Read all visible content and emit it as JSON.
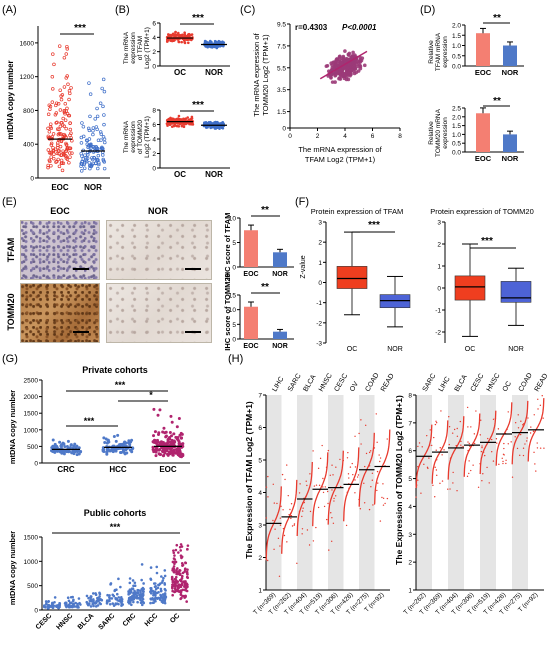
{
  "panels": {
    "A": {
      "letter": "(A)",
      "ylabel": "mtDNA copy number",
      "ticks": [
        "0",
        "400",
        "800",
        "1200",
        "1600"
      ],
      "groups": [
        "EOC",
        "NOR"
      ],
      "sig": "***"
    },
    "B": {
      "letter": "(B)",
      "top": {
        "ylabel_lines": [
          "The mRNA",
          "expression",
          "of TFAM",
          "Log2 (TPM+1)"
        ],
        "ticks": [
          "0",
          "2",
          "4",
          "6"
        ],
        "groups": [
          "OC",
          "NOR"
        ],
        "sig": "***"
      },
      "bottom": {
        "ylabel_lines": [
          "The mRNA",
          "expression",
          "of TOMM20",
          "Log2 (TPM+1)"
        ],
        "ticks": [
          "0",
          "2",
          "4",
          "6",
          "8"
        ],
        "groups": [
          "OC",
          "NOR"
        ],
        "sig": "***"
      }
    },
    "C": {
      "letter": "(C)",
      "stat_r": "r=0.4303",
      "stat_p": "P<0.0001",
      "ylabel_lines": [
        "The mRNA expression of",
        "TOMM20 Log2 (TPM+1)"
      ],
      "xlabel_lines": [
        "The mRNA expression of",
        "TFAM Log2 (TPM+1)"
      ],
      "yticks": [
        "0",
        "1.5",
        "3.5",
        "5.5",
        "7.5",
        "9.5"
      ],
      "xticks": [
        "0",
        "2",
        "4",
        "6",
        "8"
      ]
    },
    "D": {
      "letter": "(D)",
      "top": {
        "ylabel_lines": [
          "Relative",
          "TFAM mRNA",
          "expression"
        ],
        "ticks": [
          "0.0",
          "0.5",
          "1.0",
          "1.5",
          "2.0"
        ],
        "groups": [
          "EOC",
          "NOR"
        ],
        "sig": "**"
      },
      "bottom": {
        "ylabel_lines": [
          "Relative",
          "TOMM20 mRNA",
          "expression"
        ],
        "ticks": [
          "0.0",
          "0.5",
          "1.0",
          "1.5",
          "2.0",
          "2.5"
        ],
        "groups": [
          "EOC",
          "NOR"
        ],
        "sig": "**"
      }
    },
    "E": {
      "letter": "(E)",
      "col_labels": [
        "EOC",
        "NOR"
      ],
      "row_labels": [
        "TFAM",
        "TOMM20"
      ],
      "bar_top": {
        "ylabel": "IHC score of TFAM",
        "ticks": [
          "0",
          "5",
          "10"
        ],
        "groups": [
          "EOC",
          "NOR"
        ],
        "sig": "**"
      },
      "bar_bottom": {
        "ylabel": "IHC score of TOMM20",
        "ticks": [
          "0",
          "5",
          "10",
          "15"
        ],
        "groups": [
          "EOC",
          "NOR"
        ],
        "sig": "**"
      }
    },
    "F": {
      "letter": "(F)",
      "left": {
        "title": "Protein expression of TFAM",
        "ylabel": "Z-value",
        "ticks": [
          "3",
          "2",
          "1",
          "0",
          "-1",
          "-2",
          "-3"
        ],
        "groups": [
          "OC",
          "NOR"
        ],
        "sig": "***"
      },
      "right": {
        "title": "Protein expression of TOMM20",
        "ticks": [
          "3",
          "2",
          "1",
          "0",
          "-1",
          "-2"
        ],
        "groups": [
          "OC",
          "NOR"
        ],
        "sig": "***"
      }
    },
    "G": {
      "letter": "(G)",
      "top": {
        "title": "Private cohorts",
        "ylabel": "mtDNA copy number",
        "ticks": [
          "0",
          "500",
          "1000",
          "1500",
          "2000",
          "2500"
        ],
        "groups": [
          "CRC",
          "HCC",
          "EOC"
        ],
        "sigs": [
          "***",
          "***",
          "*"
        ]
      },
      "bottom": {
        "title": "Public cohorts",
        "ylabel": "mtDNA copy number",
        "ticks": [
          "0",
          "500",
          "1000",
          "1500"
        ],
        "groups": [
          "CESC",
          "HNSC",
          "BLCA",
          "SARC",
          "CRC",
          "HCC",
          "OC"
        ],
        "sig": "***"
      }
    },
    "H": {
      "letter": "(H)",
      "left": {
        "ylabel": "The Expression of TFAM Log2 (TPM+1)",
        "ticks": [
          "1",
          "2",
          "3",
          "4",
          "5",
          "6",
          "7"
        ],
        "cancers": [
          "LIHC",
          "SARC",
          "BLCA",
          "HNSC",
          "CESC",
          "OV",
          "COAD",
          "READ"
        ],
        "xlabels": [
          "T (n=369)",
          "T (n=262)",
          "T (n=404)",
          "T (n=519)",
          "T (n=306)",
          "T (n=426)",
          "T (n=275)",
          "T (n=92)"
        ]
      },
      "right": {
        "ylabel": "The Expression of TOMM20 Log2 (TPM+1)",
        "ticks": [
          "1",
          "2",
          "3",
          "4",
          "5",
          "6",
          "7",
          "8"
        ],
        "cancers": [
          "SARC",
          "LIHC",
          "BLCA",
          "CESC",
          "HNSC",
          "OC",
          "COAD",
          "READ"
        ],
        "xlabels": [
          "T (n=262)",
          "T (n=369)",
          "T (n=404)",
          "T (n=306)",
          "T (n=519)",
          "T (n=426)",
          "T (n=275)",
          "T (n=92)"
        ]
      }
    }
  },
  "colors": {
    "red": "#e83a2e",
    "blue": "#3f6fc9",
    "salmon": "#f47f72",
    "steel": "#4f79c8",
    "purple": "#9b3a78",
    "magenta": "#b0246e",
    "navy": "#2c4f9e",
    "orange_box": "#ef3e1f",
    "blue_box": "#4d63d6",
    "stripe": "#e5e5e5"
  },
  "chart_data": [
    {
      "type": "scatter",
      "panel": "A",
      "categories": [
        "EOC",
        "NOR"
      ],
      "median": [
        460,
        320
      ],
      "ylim": [
        0,
        1800
      ]
    },
    {
      "type": "scatter",
      "panel": "B-top",
      "categories": [
        "OC",
        "NOR"
      ],
      "median": [
        3.9,
        3.0
      ],
      "ylim": [
        0,
        6
      ]
    },
    {
      "type": "scatter",
      "panel": "B-bottom",
      "categories": [
        "OC",
        "NOR"
      ],
      "median": [
        6.4,
        5.9
      ],
      "ylim": [
        0,
        8
      ]
    },
    {
      "type": "scatter",
      "panel": "C",
      "r": 0.4303,
      "xlim": [
        0,
        8
      ],
      "ylim": [
        0,
        9.5
      ],
      "trend": [
        [
          2.2,
          4.5
        ],
        [
          5.6,
          7.0
        ]
      ]
    },
    {
      "type": "bar",
      "panel": "D-top",
      "categories": [
        "EOC",
        "NOR"
      ],
      "values": [
        1.6,
        1.0
      ],
      "ylim": [
        0,
        2
      ]
    },
    {
      "type": "bar",
      "panel": "D-bottom",
      "categories": [
        "EOC",
        "NOR"
      ],
      "values": [
        2.2,
        1.0
      ],
      "ylim": [
        0,
        2.5
      ]
    },
    {
      "type": "bar",
      "panel": "E-top",
      "categories": [
        "EOC",
        "NOR"
      ],
      "values": [
        7.5,
        3.0
      ],
      "ylim": [
        0,
        10
      ]
    },
    {
      "type": "bar",
      "panel": "E-bottom",
      "categories": [
        "EOC",
        "NOR"
      ],
      "values": [
        11,
        2.5
      ],
      "ylim": [
        0,
        15
      ]
    },
    {
      "type": "box",
      "panel": "F-left",
      "categories": [
        "OC",
        "NOR"
      ],
      "q1": [
        -0.3,
        -1.25
      ],
      "median": [
        0.2,
        -0.9
      ],
      "q3": [
        0.8,
        -0.6
      ],
      "min": [
        -1.6,
        -2.2
      ],
      "max": [
        2.5,
        0.3
      ],
      "ylim": [
        -3,
        3
      ]
    },
    {
      "type": "box",
      "panel": "F-right",
      "categories": [
        "OC",
        "NOR"
      ],
      "q1": [
        -0.55,
        -0.65
      ],
      "median": [
        0.05,
        -0.45
      ],
      "q3": [
        0.55,
        0.3
      ],
      "min": [
        -2.2,
        -1.7
      ],
      "max": [
        2.0,
        0.9
      ],
      "ylim": [
        -2.5,
        3
      ]
    },
    {
      "type": "scatter",
      "panel": "G-top",
      "categories": [
        "CRC",
        "HCC",
        "EOC"
      ],
      "median": [
        410,
        470,
        500
      ],
      "ylim": [
        0,
        2500
      ]
    },
    {
      "type": "scatter",
      "panel": "G-bottom",
      "categories": [
        "CESC",
        "HNSC",
        "BLCA",
        "SARC",
        "CRC",
        "HCC",
        "OC"
      ],
      "median": [
        90,
        110,
        190,
        230,
        280,
        340,
        600
      ],
      "ylim": [
        0,
        1500
      ]
    },
    {
      "type": "scatter",
      "panel": "H-left",
      "categories": [
        "LIHC",
        "SARC",
        "BLCA",
        "HNSC",
        "CESC",
        "OV",
        "COAD",
        "READ"
      ],
      "median": [
        3.05,
        3.25,
        3.8,
        4.1,
        4.15,
        4.25,
        4.7,
        4.8
      ],
      "ylim": [
        1,
        7
      ]
    },
    {
      "type": "scatter",
      "panel": "H-right",
      "categories": [
        "SARC",
        "LIHC",
        "BLCA",
        "CESC",
        "HNSC",
        "OC",
        "COAD",
        "READ"
      ],
      "median": [
        5.8,
        5.95,
        6.1,
        6.2,
        6.3,
        6.6,
        6.65,
        6.75
      ],
      "ylim": [
        1,
        8
      ]
    }
  ]
}
